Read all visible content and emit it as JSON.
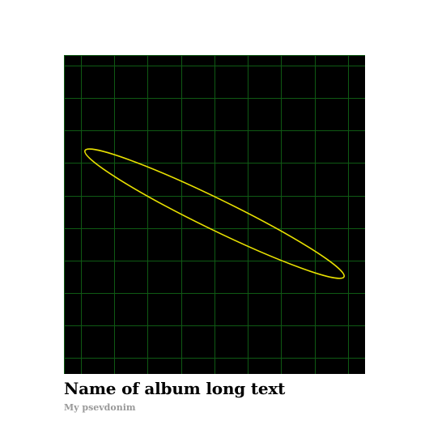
{
  "album": {
    "title": "Name of album long text",
    "artist": "My psevdonim"
  },
  "cover_art": {
    "icon": "oscilloscope-lissajous-artwork",
    "background_color": "#000000",
    "grid_color": "#0f5a14",
    "trace_color": "#e8e000"
  }
}
